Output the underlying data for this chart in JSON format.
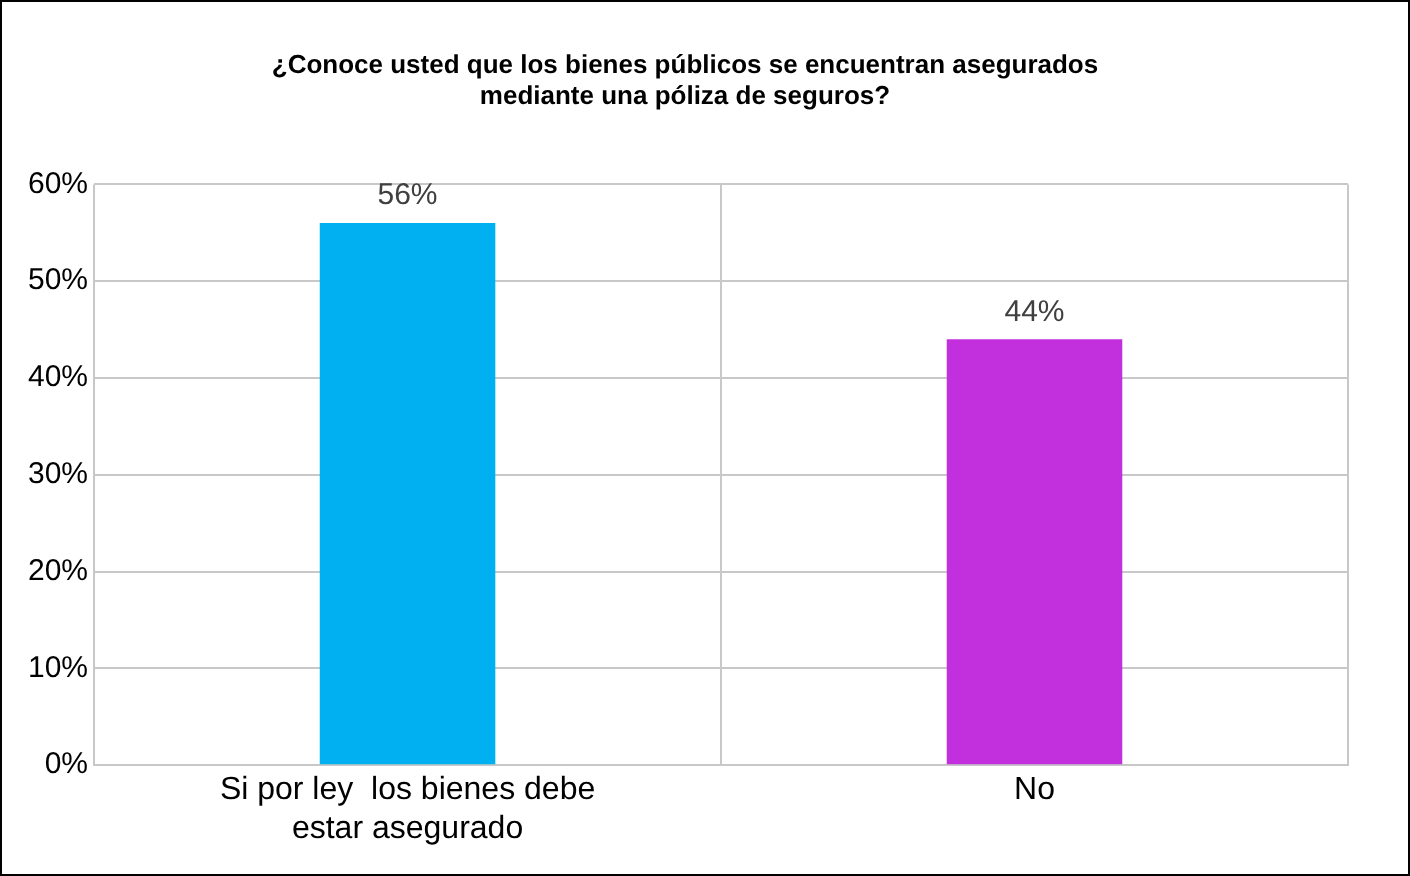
{
  "chart_data": {
    "type": "bar",
    "title": "¿Conoce usted que los bienes públicos se encuentran asegurados mediante una póliza de seguros?",
    "categories": [
      "Si por ley  los bienes debe estar asegurado",
      "No"
    ],
    "values": [
      56,
      44
    ],
    "colors": [
      "#00b0f0",
      "#c22fdc"
    ],
    "ylim": [
      0,
      60
    ],
    "yticks": [
      {
        "value": 0,
        "label": "0%"
      },
      {
        "value": 10,
        "label": "10%"
      },
      {
        "value": 20,
        "label": "20%"
      },
      {
        "value": 30,
        "label": "30%"
      },
      {
        "value": 40,
        "label": "40%"
      },
      {
        "value": 50,
        "label": "50%"
      },
      {
        "value": 60,
        "label": "60%"
      }
    ],
    "value_labels": [
      "56%",
      "44%"
    ],
    "grid": true,
    "legend": false
  }
}
